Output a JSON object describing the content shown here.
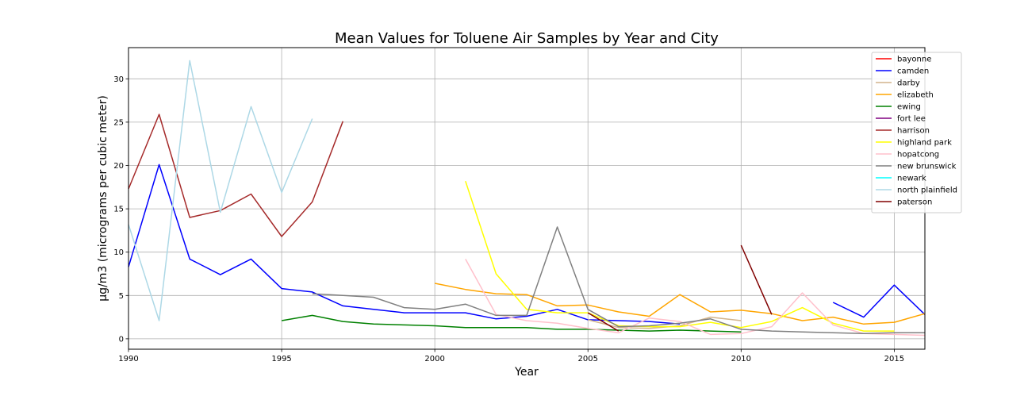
{
  "chart_data": {
    "type": "line",
    "title": "Mean Values for Toluene Air Samples by Year and City",
    "xlabel": "Year",
    "ylabel": "µg/m3 (micrograms per cubic meter)",
    "xlim": [
      1990,
      2016
    ],
    "ylim": [
      -1.2,
      33.6
    ],
    "xticks": [
      1990,
      1995,
      2000,
      2005,
      2010,
      2015
    ],
    "yticks": [
      0,
      5,
      10,
      15,
      20,
      25,
      30
    ],
    "grid": true,
    "legend_position": "top-right",
    "series": [
      {
        "name": "bayonne",
        "color": "#ff0000",
        "points": []
      },
      {
        "name": "camden",
        "color": "#0000ff",
        "points": [
          [
            1990,
            8.3
          ],
          [
            1991,
            20.1
          ],
          [
            1992,
            9.2
          ],
          [
            1993,
            7.4
          ],
          [
            1994,
            9.2
          ],
          [
            1995,
            5.8
          ],
          [
            1996,
            5.4
          ],
          [
            1997,
            3.8
          ],
          [
            1998,
            3.4
          ],
          [
            1999,
            3.0
          ],
          [
            2000,
            3.0
          ],
          [
            2001,
            3.0
          ],
          [
            2002,
            2.3
          ],
          [
            2003,
            2.6
          ],
          [
            2004,
            3.4
          ],
          [
            2005,
            2.2
          ],
          [
            2006,
            2.1
          ],
          [
            2007,
            2.0
          ],
          [
            2008,
            1.7
          ],
          null,
          [
            2013,
            4.2
          ],
          [
            2014,
            2.5
          ],
          [
            2015,
            6.2
          ],
          [
            2016,
            2.8
          ]
        ]
      },
      {
        "name": "darby",
        "color": "#d2b48c",
        "points": [
          [
            2005,
            2.2
          ],
          [
            2006,
            1.3
          ],
          [
            2007,
            1.2
          ],
          [
            2008,
            1.5
          ],
          [
            2009,
            2.5
          ],
          [
            2010,
            2.1
          ]
        ]
      },
      {
        "name": "elizabeth",
        "color": "#ffa500",
        "points": [
          [
            2000,
            6.4
          ],
          [
            2001,
            5.7
          ],
          [
            2002,
            5.2
          ],
          [
            2003,
            5.1
          ],
          [
            2004,
            3.8
          ],
          [
            2005,
            3.9
          ],
          [
            2006,
            3.1
          ],
          [
            2007,
            2.6
          ],
          [
            2008,
            5.1
          ],
          [
            2009,
            3.1
          ],
          [
            2010,
            3.3
          ],
          [
            2011,
            2.9
          ],
          [
            2012,
            2.1
          ],
          [
            2013,
            2.5
          ],
          [
            2014,
            1.7
          ],
          [
            2015,
            1.9
          ],
          [
            2016,
            2.9
          ]
        ]
      },
      {
        "name": "ewing",
        "color": "#008000",
        "points": [
          [
            1995,
            2.1
          ],
          [
            1996,
            2.7
          ],
          [
            1997,
            2.0
          ],
          [
            1998,
            1.7
          ],
          [
            1999,
            1.6
          ],
          [
            2000,
            1.5
          ],
          [
            2001,
            1.3
          ],
          [
            2002,
            1.3
          ],
          [
            2003,
            1.3
          ],
          [
            2004,
            1.1
          ],
          [
            2005,
            1.1
          ],
          [
            2006,
            1.0
          ],
          [
            2007,
            0.9
          ],
          [
            2008,
            1.0
          ],
          [
            2009,
            0.9
          ],
          [
            2010,
            0.8
          ]
        ]
      },
      {
        "name": "fort lee",
        "color": "#800080",
        "points": []
      },
      {
        "name": "harrison",
        "color": "#a52a2a",
        "points": [
          [
            1990,
            17.3
          ],
          [
            1991,
            25.9
          ],
          [
            1992,
            14.0
          ],
          [
            1993,
            14.8
          ],
          [
            1994,
            16.7
          ],
          [
            1995,
            11.8
          ],
          [
            1996,
            15.8
          ],
          [
            1997,
            25.1
          ]
        ]
      },
      {
        "name": "highland park",
        "color": "#ffff00",
        "points": [
          [
            2001,
            18.2
          ],
          [
            2002,
            7.5
          ],
          [
            2003,
            3.4
          ],
          [
            2004,
            3.0
          ],
          [
            2005,
            3.0
          ],
          [
            2006,
            1.5
          ],
          [
            2007,
            1.4
          ],
          [
            2008,
            1.4
          ],
          [
            2009,
            1.9
          ],
          [
            2010,
            1.3
          ],
          [
            2011,
            2.0
          ],
          [
            2012,
            3.6
          ],
          [
            2013,
            1.8
          ],
          [
            2014,
            0.9
          ],
          [
            2015,
            0.9
          ]
        ]
      },
      {
        "name": "hopatcong",
        "color": "#ffc0cb",
        "points": [
          [
            2001,
            9.2
          ],
          [
            2002,
            2.8
          ],
          [
            2003,
            2.1
          ],
          [
            2004,
            1.8
          ],
          [
            2005,
            1.2
          ],
          [
            2006,
            0.7
          ],
          [
            2007,
            2.4
          ],
          [
            2008,
            2.0
          ],
          [
            2009,
            0.5
          ],
          [
            2010,
            0.6
          ],
          [
            2011,
            1.4
          ],
          [
            2012,
            5.3
          ],
          [
            2013,
            1.6
          ],
          [
            2014,
            0.6
          ],
          [
            2015,
            0.5
          ],
          [
            2016,
            0.4
          ]
        ]
      },
      {
        "name": "new brunswick",
        "color": "#808080",
        "points": [
          [
            1996,
            5.2
          ],
          [
            1997,
            5.0
          ],
          [
            1998,
            4.8
          ],
          [
            1999,
            3.6
          ],
          [
            2000,
            3.4
          ],
          [
            2001,
            4.0
          ],
          [
            2002,
            2.7
          ],
          [
            2003,
            2.7
          ],
          [
            2004,
            12.9
          ],
          [
            2005,
            3.4
          ],
          [
            2006,
            1.4
          ],
          [
            2007,
            1.5
          ],
          [
            2008,
            1.8
          ],
          [
            2009,
            2.3
          ],
          [
            2010,
            1.1
          ],
          [
            2011,
            0.9
          ],
          [
            2012,
            0.8
          ],
          [
            2013,
            0.7
          ],
          [
            2014,
            0.6
          ],
          [
            2015,
            0.7
          ],
          [
            2016,
            0.7
          ]
        ]
      },
      {
        "name": "newark",
        "color": "#00ffff",
        "points": []
      },
      {
        "name": "north plainfield",
        "color": "#add8e6",
        "points": [
          [
            1990,
            13.2
          ],
          [
            1991,
            2.1
          ],
          [
            1992,
            32.1
          ],
          [
            1993,
            14.6
          ],
          [
            1994,
            26.8
          ],
          [
            1995,
            16.9
          ],
          [
            1996,
            25.4
          ]
        ]
      },
      {
        "name": "paterson",
        "color": "#800000",
        "points": [
          [
            2005,
            3.0
          ],
          [
            2006,
            0.9
          ],
          null,
          [
            2010,
            10.8
          ],
          [
            2011,
            2.8
          ]
        ]
      }
    ]
  }
}
